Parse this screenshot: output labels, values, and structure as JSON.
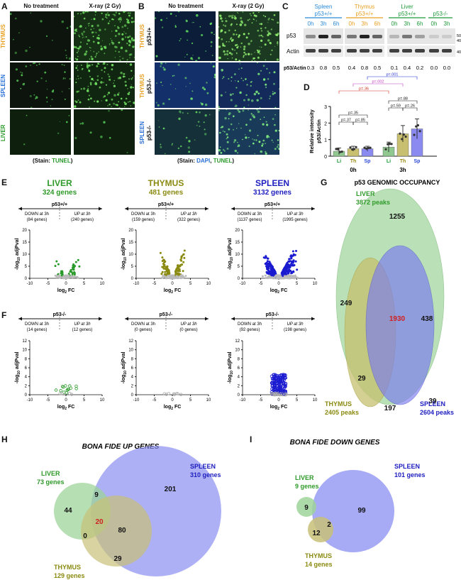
{
  "panels": {
    "a": "A",
    "b": "B",
    "c": "C",
    "d": "D",
    "e": "E",
    "f": "F",
    "g": "G",
    "h": "H",
    "i": "I"
  },
  "a": {
    "col1": "No treatment",
    "col2": "X-ray (2 Gy)",
    "rows": [
      "THYMUS",
      "SPLEEN",
      "LIVER"
    ],
    "stain_prefix": "(Stain: ",
    "stain_word": "TUNEL",
    "stain_suffix": ")"
  },
  "b": {
    "col1": "No treatment",
    "col2": "X-ray (2 Gy)",
    "rows": [
      {
        "organ": "THYMUS",
        "geno": "p53+/+"
      },
      {
        "organ": "THYMUS",
        "geno": "p53-/-"
      },
      {
        "organ": "SPLEEN",
        "geno": "p53-/-"
      }
    ],
    "stain_prefix": "(Stain: ",
    "stain_dapi": "DAPI",
    "stain_comma": ", ",
    "stain_tunel": "TUNEL",
    "stain_suffix": ")"
  },
  "c": {
    "groups": [
      {
        "organ": "Spleen",
        "geno": "p53+/+",
        "color": "#2a8ad6"
      },
      {
        "organ": "Thymus",
        "geno": "p53+/+",
        "color": "#e8a020"
      },
      {
        "organ": "Liver",
        "geno": "p53+/+",
        "color": "#1f9a3a"
      },
      {
        "organ": "",
        "geno": "p53-/-",
        "color": "#1f9a3a"
      }
    ],
    "times": [
      "0h",
      "3h",
      "6h",
      "0h",
      "3h",
      "6h",
      "0h",
      "3h",
      "6h",
      "0h",
      "3h"
    ],
    "time_colors": [
      "#2a8ad6",
      "#2a8ad6",
      "#2a8ad6",
      "#e8a020",
      "#e8a020",
      "#e8a020",
      "#1f9a3a",
      "#1f9a3a",
      "#1f9a3a",
      "#1f9a3a",
      "#1f9a3a"
    ],
    "row_p53": "p53",
    "row_actin": "Actin",
    "mw": [
      "50kd",
      "40kd",
      "40kd"
    ],
    "ratio_label": "p53/Actin",
    "ratios": [
      "0.3",
      "0.8",
      "0.5",
      "0.4",
      "0.8",
      "0.5",
      "0.1",
      "0.4",
      "0.2",
      "0.0",
      "0.0"
    ]
  },
  "d": {
    "ylabel1": "Relative intensity",
    "ylabel2": "p53/Actin",
    "yticks": [
      "0",
      "1",
      "2",
      "3"
    ],
    "bar_labels": [
      "Li",
      "Th",
      "Sp",
      "Li",
      "Th",
      "Sp"
    ],
    "bar_label_colors": [
      "#1f9a3a",
      "#9a8a10",
      "#2a4ad6",
      "#1f9a3a",
      "#9a8a10",
      "#2a4ad6"
    ],
    "groups": [
      "0h",
      "3h"
    ],
    "pvals": [
      "p=.001",
      "p=.002",
      "p=.36",
      "p=.88",
      "p=.59",
      "p=.26",
      "p=.35",
      "p=.37",
      "p=.85"
    ],
    "pval_colors": [
      "#2030d0",
      "#c040c0",
      "#d03020",
      "#111",
      "#111",
      "#111",
      "#111",
      "#111",
      "#111"
    ]
  },
  "chart_data": {
    "type": "bar",
    "categories": [
      "Li",
      "Th",
      "Sp",
      "Li",
      "Th",
      "Sp"
    ],
    "groups": [
      "0h",
      "0h",
      "0h",
      "3h",
      "3h",
      "3h"
    ],
    "values": [
      0.3,
      0.45,
      0.45,
      0.55,
      1.35,
      1.65
    ],
    "errors": [
      0.2,
      0.15,
      0.15,
      0.3,
      0.5,
      0.6
    ],
    "colors": [
      "#90c890",
      "#c8c070",
      "#8a8af0",
      "#90c890",
      "#c8c070",
      "#8a8af0"
    ],
    "ylim": [
      0,
      3
    ],
    "ylabel": "Relative intensity p53/Actin"
  },
  "e": [
    {
      "organ": "LIVER",
      "genes": "324 genes",
      "color": "#3aa030",
      "geno": "p53+/+",
      "down": "DOWN at 3h",
      "down_n": "(84 genes)",
      "up": "UP at 3h",
      "up_n": "(240 genes)"
    },
    {
      "organ": "THYMUS",
      "genes": "481 genes",
      "color": "#8a8a10",
      "geno": "p53+/+",
      "down": "DOWN at 3h",
      "down_n": "(159 genes)",
      "up": "UP at 3h",
      "up_n": "(322 genes)"
    },
    {
      "organ": "SPLEEN",
      "genes": "3132 genes",
      "color": "#2020c0",
      "geno": "p53+/+",
      "down": "DOWN at 3h",
      "down_n": "(1137 genes)",
      "up": "UP at 3h",
      "up_n": "(1995 genes)"
    }
  ],
  "f": [
    {
      "geno": "p53-/-",
      "down": "DOWN at 3h",
      "down_n": "(14 genes)",
      "up": "UP at 3h",
      "up_n": "(12 genes)"
    },
    {
      "geno": "p53-/-",
      "down": "DOWN at 3h",
      "down_n": "(0 genes)",
      "up": "UP at 3h",
      "up_n": "(0 genes)"
    },
    {
      "geno": "p53-/-",
      "down": "DOWN at 3h",
      "down_n": "(92 genes)",
      "up": "UP at 3h",
      "up_n": "(198 genes)"
    }
  ],
  "volcano": {
    "xlabel": "log",
    "xlabel_sub": "2",
    "xlabel_end": " FC",
    "ylabel": "-log",
    "ylabel_sub": "10",
    "ylabel_end": " adjPval",
    "xticks": [
      "-10",
      "-5",
      "0",
      "5",
      "10"
    ],
    "yticks_e": [
      "0",
      "5",
      "10",
      "15",
      "20"
    ],
    "yticks_f": [
      "0",
      "2",
      "4",
      "6",
      "8",
      "10",
      "12"
    ]
  },
  "g": {
    "title": "p53 GENOMIC OCCUPANCY",
    "liver": "LIVER",
    "liver_peaks": "3872 peaks",
    "thymus": "THYMUS",
    "thymus_peaks": "2405 peaks",
    "spleen": "SPLEEN",
    "spleen_peaks": "2604 peaks",
    "n_liver": "1255",
    "n_lt": "249",
    "n_all": "1930",
    "n_ls": "438",
    "n_thymus": "29",
    "n_ts": "197",
    "n_spleen": "39"
  },
  "h": {
    "title": "BONA FIDE UP GENES",
    "liver": "LIVER",
    "liver_genes": "73 genes",
    "spleen": "SPLEEN",
    "spleen_genes": "310 genes",
    "thymus": "THYMUS",
    "thymus_genes": "129 genes",
    "n_liver": "44",
    "n_ls": "9",
    "n_all": "20",
    "n_spleen": "201",
    "n_lt": "0",
    "n_ts": "80",
    "n_thymus": "29"
  },
  "i": {
    "title": "BONA FIDE DOWN GENES",
    "liver": "LIVER",
    "liver_genes": "9 genes",
    "spleen": "SPLEEN",
    "spleen_genes": "101 genes",
    "thymus": "THYMUS",
    "thymus_genes": "14 genes",
    "n_liver": "9",
    "n_spleen": "99",
    "n_thymus": "12",
    "n_ts": "2"
  },
  "colors": {
    "liver": "#2f9a2a",
    "thymus": "#8a8a10",
    "spleen": "#2020c0",
    "tunel": "#2a9a2a",
    "dapi": "#2a70d6"
  }
}
